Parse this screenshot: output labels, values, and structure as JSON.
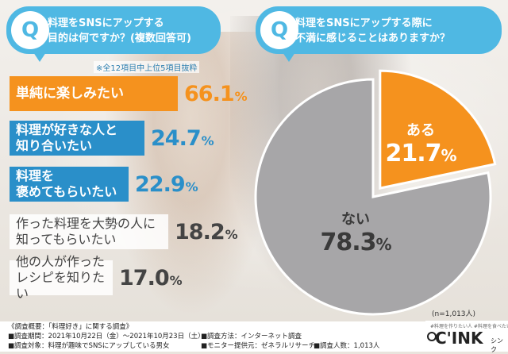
{
  "left_question": {
    "badge": "Q",
    "line1": "料理をSNSにアップする",
    "line2": "目的は何ですか？(複数回答可)"
  },
  "right_question": {
    "badge": "Q",
    "line1": "料理をSNSにアップする際に",
    "line2": "不満に感じることはありますか？"
  },
  "note": "※全12項目中上位5項目抜粋",
  "sample_size": "(n=1,013人)",
  "colors": {
    "accent_orange": "#f5921e",
    "accent_blue": "#2a8fc9",
    "gray": "#a7a6a8",
    "bubble": "#4fb8e3"
  },
  "chart_data": [
    {
      "type": "bar",
      "orientation": "horizontal",
      "categories": [
        "単純に楽しみたい",
        "料理が好きな人と\n知り合いたい",
        "料理を\n褒めてもらいたい",
        "作った料理を大勢の人に\n知ってもらいたい",
        "他の人が作った\nレシピを知りたい"
      ],
      "values": [
        66.1,
        24.7,
        22.9,
        18.2,
        17.0
      ],
      "value_labels": [
        "66.1",
        "24.7",
        "22.9",
        "18.2",
        "17.0"
      ],
      "unit": "%",
      "title": "",
      "xlabel": "",
      "ylabel": ""
    },
    {
      "type": "pie",
      "categories": [
        "ある",
        "ない"
      ],
      "values": [
        21.7,
        78.3
      ],
      "value_labels": [
        "21.7",
        "78.3"
      ],
      "unit": "%",
      "title": ""
    }
  ],
  "footer": {
    "heading": "《調査概要：「料理好き」に関する調査》",
    "period_label": "■調査期間：",
    "period_value": "2021年10月22日（金）～2021年10月23日（土）",
    "target_label": "■調査対象：",
    "target_value": "料理が趣味でSNSにアップしている男女",
    "method_label": "■調査方法：",
    "method_value": "インターネット調査",
    "provider_label": "■モニター提供元：",
    "provider_value": "ゼネラルリサーチ",
    "count_label": "■調査人数：",
    "count_value": "1,013人"
  },
  "logo": {
    "sub": "#料理を作りたい人 #料理を食べたい人",
    "main": "C'INK",
    "kana": "シンク"
  }
}
